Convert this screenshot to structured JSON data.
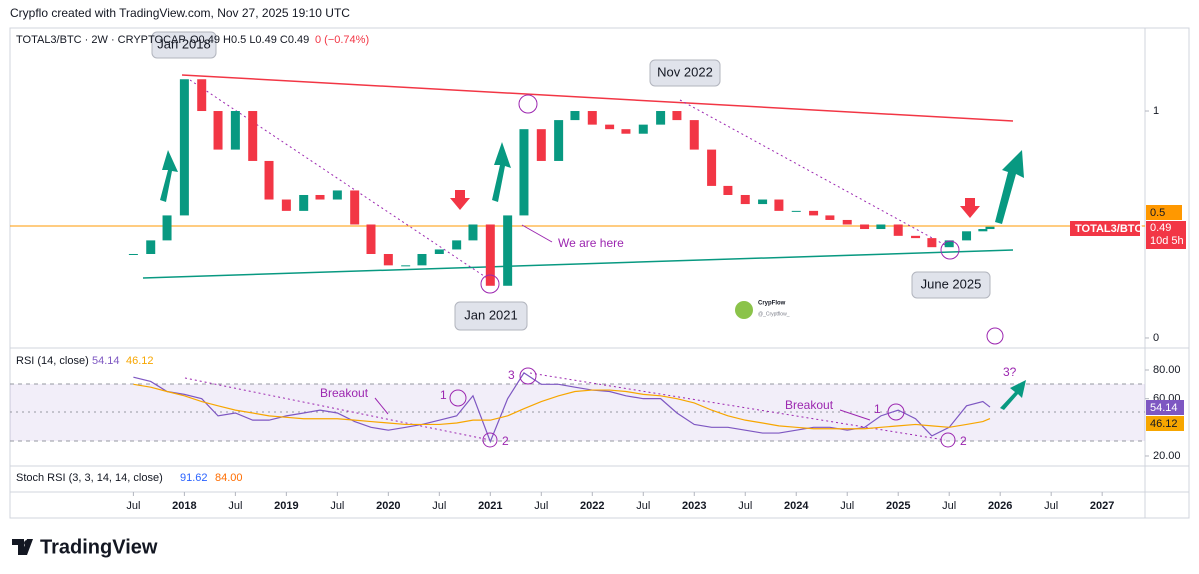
{
  "header": "Crypflo created with TradingView.com, Nov 27, 2025 19:10 UTC",
  "symbol_line": {
    "symbol": "TOTAL3/BTC · 2W · CRYPTOCAP",
    "ohlc": "O0.49 H0.5 L0.49 C0.49",
    "change": "0 (−0.74%)"
  },
  "price_tags": {
    "level": "0.5",
    "symbol": "TOTAL3/BTC",
    "last": "0.49",
    "countdown": "10d 5h"
  },
  "annotations": {
    "jan2018": "Jan 2018",
    "nov2022": "Nov 2022",
    "jan2021": "Jan 2021",
    "june2025": "June 2025",
    "here": "We are here",
    "breakout1": "Breakout",
    "breakout2": "Breakout",
    "n1a": "1",
    "n2a": "2",
    "n3": "3",
    "n1b": "1",
    "n2b": "2",
    "n3q": "3?"
  },
  "watermark": {
    "name": "CrypFlow",
    "handle": "@_Cryptflow_"
  },
  "rsi_legend": {
    "label": "RSI (14, close)",
    "rsi": "54.14",
    "ma": "46.12"
  },
  "stoch_legend": {
    "label": "Stoch RSI (3, 3, 14, 14, close)",
    "k": "91.62",
    "d": "84.00"
  },
  "footer": "TradingView",
  "chart_data": [
    {
      "type": "candlestick",
      "x": [
        2017.5,
        2017.67,
        2017.83,
        2018.0,
        2018.17,
        2018.33,
        2018.5,
        2018.67,
        2018.83,
        2019.0,
        2019.17,
        2019.33,
        2019.5,
        2019.67,
        2019.83,
        2020.0,
        2020.17,
        2020.33,
        2020.5,
        2020.67,
        2020.83,
        2021.0,
        2021.17,
        2021.33,
        2021.5,
        2021.67,
        2021.83,
        2022.0,
        2022.17,
        2022.33,
        2022.5,
        2022.67,
        2022.83,
        2023.0,
        2023.17,
        2023.33,
        2023.5,
        2023.67,
        2023.83,
        2024.0,
        2024.17,
        2024.33,
        2024.5,
        2024.67,
        2024.83,
        2025.0,
        2025.17,
        2025.33,
        2025.5,
        2025.67,
        2025.83,
        2025.9
      ],
      "values": [
        0.37,
        0.43,
        0.54,
        1.14,
        1.0,
        0.83,
        1.0,
        0.78,
        0.61,
        0.56,
        0.63,
        0.61,
        0.65,
        0.5,
        0.37,
        0.32,
        0.32,
        0.37,
        0.39,
        0.43,
        0.5,
        0.23,
        0.54,
        0.92,
        0.78,
        0.96,
        1.0,
        0.94,
        0.92,
        0.9,
        0.94,
        1.0,
        0.96,
        0.83,
        0.67,
        0.63,
        0.59,
        0.61,
        0.56,
        0.56,
        0.54,
        0.52,
        0.5,
        0.48,
        0.5,
        0.45,
        0.44,
        0.4,
        0.43,
        0.47,
        0.48,
        0.49
      ],
      "up_color": "#089981",
      "down_color": "#f23645",
      "xlim": [
        2016.29,
        2027.42
      ],
      "xticks": [
        {
          "value": 2017.5,
          "label": "Jul"
        },
        2018,
        {
          "value": 2018.5,
          "label": "Jul"
        },
        2019,
        {
          "value": 2019.5,
          "label": "Jul"
        },
        2020,
        {
          "value": 2020.5,
          "label": "Jul"
        },
        2021,
        {
          "value": 2021.5,
          "label": "Jul"
        },
        2022,
        {
          "value": 2022.5,
          "label": "Jul"
        },
        2023,
        {
          "value": 2023.5,
          "label": "Jul"
        },
        2024,
        {
          "value": 2024.5,
          "label": "Jul"
        },
        2025,
        {
          "value": 2025.5,
          "label": "Jul"
        },
        2026,
        {
          "value": 2026.5,
          "label": "Jul"
        },
        2027
      ],
      "ylim": [
        -0.031,
        1.357
      ],
      "yticks": [
        0,
        1
      ]
    },
    {
      "type": "line",
      "x": [
        2017.5,
        2017.67,
        2017.83,
        2018.0,
        2018.17,
        2018.33,
        2018.5,
        2018.67,
        2018.83,
        2019.0,
        2019.17,
        2019.33,
        2019.5,
        2019.67,
        2019.83,
        2020.0,
        2020.17,
        2020.33,
        2020.5,
        2020.67,
        2020.83,
        2021.0,
        2021.17,
        2021.33,
        2021.5,
        2021.67,
        2021.83,
        2022.0,
        2022.17,
        2022.33,
        2022.5,
        2022.67,
        2022.83,
        2023.0,
        2023.17,
        2023.33,
        2023.5,
        2023.67,
        2023.83,
        2024.0,
        2024.17,
        2024.33,
        2024.5,
        2024.67,
        2024.83,
        2025.0,
        2025.17,
        2025.33,
        2025.5,
        2025.67,
        2025.83,
        2025.9
      ],
      "series": [
        {
          "name": "RSI",
          "color": "#7e57c2",
          "values": [
            75,
            72,
            65,
            63,
            60,
            48,
            50,
            45,
            45,
            48,
            50,
            52,
            50,
            44,
            40,
            38,
            40,
            42,
            45,
            48,
            62,
            30,
            60,
            78,
            70,
            70,
            68,
            66,
            65,
            62,
            60,
            60,
            50,
            42,
            40,
            40,
            38,
            36,
            36,
            38,
            40,
            40,
            38,
            40,
            48,
            52,
            46,
            34,
            40,
            55,
            58,
            54.14
          ]
        },
        {
          "name": "RSI-based MA",
          "color": "#f7a600",
          "values": [
            70,
            68,
            65,
            62,
            58,
            55,
            52,
            50,
            48,
            47,
            46,
            46,
            46,
            45,
            44,
            43,
            42,
            42,
            42,
            43,
            45,
            45,
            48,
            53,
            58,
            62,
            65,
            66,
            66,
            65,
            63,
            62,
            60,
            57,
            52,
            48,
            45,
            43,
            41,
            40,
            39,
            39,
            39,
            39,
            40,
            41,
            42,
            41,
            40,
            42,
            44,
            46.12
          ]
        }
      ],
      "xlim": [
        2016.29,
        2027.42
      ],
      "ylim": [
        14.4,
        93.96
      ],
      "yticks": [
        {
          "value": 80,
          "label": "80.00"
        },
        {
          "value": 60,
          "label": "60.00"
        },
        {
          "value": 20,
          "label": "20.00"
        }
      ]
    }
  ]
}
